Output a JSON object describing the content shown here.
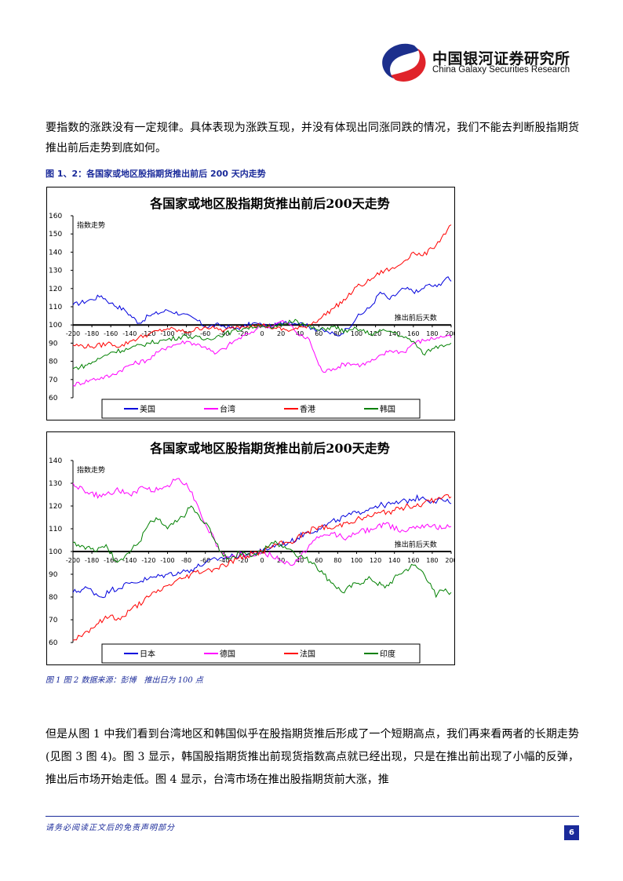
{
  "header": {
    "company_cn": "中国银河证券研究所",
    "company_en": "China Galaxy Securities Research",
    "logo_colors": {
      "blue": "#1c2f8c",
      "red": "#e0232a"
    }
  },
  "paragraphs": {
    "p1": "要指数的涨跌没有一定规律。具体表现为涨跌互现，并没有体现出同涨同跌的情况，我们不能去判断股指期货推出前后走势到底如何。",
    "p2": "但是从图 1 中我们看到台湾地区和韩国似乎在股指期货推后形成了一个短期高点，我们再来看两者的长期走势(见图 3 图 4)。图 3 显示，韩国股指期货推出前现货指数高点就已经出现，只是在推出前出现了小幅的反弹，推出后市场开始走低。图 4 显示，台湾市场在推出股指期货前大涨，推"
  },
  "figure": {
    "title": "图 1、2：各国家或地区股指期货推出前后 200 天内走势",
    "note": "图 1 图 2 数据来源：彭博　推出日为 100 点"
  },
  "footer": {
    "disclaimer": "请务必阅读正文后的免责声明部分",
    "page_number": "6"
  },
  "chart_data": [
    {
      "type": "line",
      "title": "各国家或地区股指期货推出前后200天走势",
      "ylabel": "指数走势",
      "annotation": "推出前后天数",
      "x_ticks": [
        -200,
        -180,
        -160,
        -140,
        -120,
        -100,
        -80,
        -60,
        -40,
        -20,
        0,
        20,
        40,
        60,
        80,
        100,
        120,
        140,
        160,
        180,
        200
      ],
      "y_ticks": [
        60,
        70,
        80,
        90,
        100,
        110,
        120,
        130,
        140,
        150,
        160
      ],
      "ylim": [
        60,
        160
      ],
      "xlim": [
        -200,
        200
      ],
      "baseline": 100,
      "legend_position": "bottom",
      "series": [
        {
          "name": "美国",
          "color": "#0000dd",
          "keys": [
            [
              -200,
              111
            ],
            [
              -180,
              114
            ],
            [
              -170,
              116
            ],
            [
              -160,
              112
            ],
            [
              -145,
              108
            ],
            [
              -130,
              101
            ],
            [
              -120,
              105
            ],
            [
              -100,
              108
            ],
            [
              -85,
              106
            ],
            [
              -70,
              103
            ],
            [
              -60,
              99
            ],
            [
              -45,
              100
            ],
            [
              -30,
              98
            ],
            [
              -20,
              99
            ],
            [
              -10,
              101
            ],
            [
              0,
              100
            ],
            [
              10,
              99
            ],
            [
              25,
              102
            ],
            [
              40,
              101
            ],
            [
              55,
              98
            ],
            [
              70,
              96
            ],
            [
              80,
              94
            ],
            [
              90,
              98
            ],
            [
              100,
              104
            ],
            [
              115,
              110
            ],
            [
              125,
              118
            ],
            [
              135,
              114
            ],
            [
              150,
              120
            ],
            [
              165,
              118
            ],
            [
              175,
              122
            ],
            [
              185,
              121
            ],
            [
              195,
              126
            ],
            [
              200,
              124
            ]
          ]
        },
        {
          "name": "台湾",
          "color": "#ff00ff",
          "keys": [
            [
              -200,
              67
            ],
            [
              -180,
              70
            ],
            [
              -160,
              72
            ],
            [
              -140,
              78
            ],
            [
              -120,
              81
            ],
            [
              -110,
              85
            ],
            [
              -100,
              88
            ],
            [
              -80,
              91
            ],
            [
              -60,
              88
            ],
            [
              -50,
              84
            ],
            [
              -40,
              87
            ],
            [
              -30,
              91
            ],
            [
              -15,
              95
            ],
            [
              -5,
              98
            ],
            [
              0,
              100
            ],
            [
              10,
              99
            ],
            [
              20,
              102
            ],
            [
              30,
              100
            ],
            [
              40,
              94
            ],
            [
              50,
              92
            ],
            [
              55,
              85
            ],
            [
              60,
              78
            ],
            [
              65,
              74
            ],
            [
              75,
              76
            ],
            [
              90,
              79
            ],
            [
              105,
              78
            ],
            [
              120,
              81
            ],
            [
              135,
              86
            ],
            [
              150,
              85
            ],
            [
              160,
              90
            ],
            [
              175,
              92
            ],
            [
              185,
              93
            ],
            [
              195,
              94
            ],
            [
              200,
              93
            ]
          ]
        },
        {
          "name": "香港",
          "color": "#ff0000",
          "keys": [
            [
              -200,
              89
            ],
            [
              -180,
              88
            ],
            [
              -160,
              90
            ],
            [
              -150,
              88
            ],
            [
              -140,
              91
            ],
            [
              -120,
              95
            ],
            [
              -100,
              98
            ],
            [
              -80,
              96
            ],
            [
              -60,
              99
            ],
            [
              -50,
              98
            ],
            [
              -40,
              97
            ],
            [
              -25,
              99
            ],
            [
              -10,
              100
            ],
            [
              0,
              100
            ],
            [
              15,
              98
            ],
            [
              30,
              97
            ],
            [
              45,
              99
            ],
            [
              60,
              103
            ],
            [
              75,
              109
            ],
            [
              90,
              115
            ],
            [
              100,
              121
            ],
            [
              110,
              123
            ],
            [
              120,
              127
            ],
            [
              130,
              130
            ],
            [
              140,
              131
            ],
            [
              150,
              135
            ],
            [
              160,
              140
            ],
            [
              170,
              138
            ],
            [
              180,
              142
            ],
            [
              190,
              148
            ],
            [
              200,
              155
            ]
          ]
        },
        {
          "name": "韩国",
          "color": "#008000",
          "keys": [
            [
              -200,
              76
            ],
            [
              -185,
              78
            ],
            [
              -170,
              82
            ],
            [
              -160,
              85
            ],
            [
              -140,
              87
            ],
            [
              -120,
              90
            ],
            [
              -100,
              92
            ],
            [
              -80,
              94
            ],
            [
              -60,
              92
            ],
            [
              -40,
              95
            ],
            [
              -20,
              98
            ],
            [
              0,
              100
            ],
            [
              10,
              98
            ],
            [
              25,
              101
            ],
            [
              35,
              103
            ],
            [
              45,
              100
            ],
            [
              60,
              97
            ],
            [
              75,
              99
            ],
            [
              90,
              96
            ],
            [
              100,
              98
            ],
            [
              115,
              95
            ],
            [
              130,
              97
            ],
            [
              140,
              96
            ],
            [
              150,
              93
            ],
            [
              160,
              91
            ],
            [
              170,
              84
            ],
            [
              180,
              87
            ],
            [
              190,
              89
            ],
            [
              200,
              90
            ]
          ]
        }
      ]
    },
    {
      "type": "line",
      "title": "各国家或地区股指期货推出前后200天走势",
      "ylabel": "指数走势",
      "annotation": "推出前后天数",
      "x_ticks": [
        -200,
        -180,
        -160,
        -140,
        -120,
        -100,
        -80,
        -60,
        -40,
        -20,
        0,
        20,
        40,
        60,
        80,
        100,
        120,
        140,
        160,
        180,
        200
      ],
      "y_ticks": [
        60,
        70,
        80,
        90,
        100,
        110,
        120,
        130,
        140
      ],
      "ylim": [
        60,
        140
      ],
      "xlim": [
        -200,
        200
      ],
      "baseline": 100,
      "legend_position": "bottom",
      "series": [
        {
          "name": "日本",
          "color": "#0000dd",
          "keys": [
            [
              -200,
              82
            ],
            [
              -185,
              84
            ],
            [
              -170,
              80
            ],
            [
              -160,
              83
            ],
            [
              -140,
              86
            ],
            [
              -120,
              88
            ],
            [
              -100,
              90
            ],
            [
              -85,
              91
            ],
            [
              -75,
              92
            ],
            [
              -60,
              95
            ],
            [
              -45,
              97
            ],
            [
              -30,
              98
            ],
            [
              -15,
              99
            ],
            [
              0,
              100
            ],
            [
              15,
              103
            ],
            [
              30,
              104
            ],
            [
              45,
              108
            ],
            [
              60,
              110
            ],
            [
              80,
              114
            ],
            [
              100,
              117
            ],
            [
              120,
              120
            ],
            [
              140,
              121
            ],
            [
              160,
              123
            ],
            [
              170,
              124
            ],
            [
              180,
              122
            ],
            [
              190,
              123
            ],
            [
              200,
              121
            ]
          ]
        },
        {
          "name": "德国",
          "color": "#ff00ff",
          "keys": [
            [
              -200,
              130
            ],
            [
              -185,
              126
            ],
            [
              -170,
              124
            ],
            [
              -155,
              127
            ],
            [
              -140,
              125
            ],
            [
              -125,
              128
            ],
            [
              -110,
              127
            ],
            [
              -100,
              129
            ],
            [
              -90,
              132
            ],
            [
              -80,
              130
            ],
            [
              -70,
              122
            ],
            [
              -60,
              112
            ],
            [
              -50,
              105
            ],
            [
              -45,
              100
            ],
            [
              -35,
              97
            ],
            [
              -20,
              99
            ],
            [
              -10,
              98
            ],
            [
              0,
              100
            ],
            [
              10,
              98
            ],
            [
              20,
              96
            ],
            [
              30,
              94
            ],
            [
              40,
              97
            ],
            [
              50,
              103
            ],
            [
              60,
              106
            ],
            [
              75,
              108
            ],
            [
              90,
              106
            ],
            [
              100,
              108
            ],
            [
              115,
              110
            ],
            [
              130,
              112
            ],
            [
              150,
              109
            ],
            [
              160,
              111
            ],
            [
              175,
              112
            ],
            [
              190,
              110
            ],
            [
              200,
              111
            ]
          ]
        },
        {
          "name": "法国",
          "color": "#ff0000",
          "keys": [
            [
              -200,
              61
            ],
            [
              -185,
              65
            ],
            [
              -175,
              68
            ],
            [
              -160,
              72
            ],
            [
              -150,
              70
            ],
            [
              -140,
              74
            ],
            [
              -120,
              80
            ],
            [
              -100,
              85
            ],
            [
              -85,
              88
            ],
            [
              -70,
              91
            ],
            [
              -55,
              92
            ],
            [
              -40,
              94
            ],
            [
              -25,
              97
            ],
            [
              -10,
              99
            ],
            [
              0,
              100
            ],
            [
              15,
              103
            ],
            [
              30,
              104
            ],
            [
              45,
              108
            ],
            [
              60,
              111
            ],
            [
              75,
              110
            ],
            [
              90,
              113
            ],
            [
              110,
              115
            ],
            [
              125,
              117
            ],
            [
              140,
              118
            ],
            [
              155,
              120
            ],
            [
              170,
              121
            ],
            [
              185,
              123
            ],
            [
              195,
              125
            ],
            [
              200,
              124
            ]
          ]
        },
        {
          "name": "印度",
          "color": "#008000",
          "keys": [
            [
              -200,
              104
            ],
            [
              -185,
              102
            ],
            [
              -175,
              100
            ],
            [
              -165,
              103
            ],
            [
              -155,
              96
            ],
            [
              -145,
              98
            ],
            [
              -130,
              104
            ],
            [
              -120,
              112
            ],
            [
              -110,
              114
            ],
            [
              -100,
              110
            ],
            [
              -90,
              113
            ],
            [
              -80,
              117
            ],
            [
              -75,
              120
            ],
            [
              -65,
              114
            ],
            [
              -55,
              110
            ],
            [
              -45,
              100
            ],
            [
              -35,
              97
            ],
            [
              -20,
              100
            ],
            [
              -10,
              98
            ],
            [
              0,
              100
            ],
            [
              10,
              104
            ],
            [
              20,
              103
            ],
            [
              30,
              101
            ],
            [
              40,
              98
            ],
            [
              55,
              95
            ],
            [
              65,
              90
            ],
            [
              75,
              86
            ],
            [
              85,
              82
            ],
            [
              100,
              86
            ],
            [
              115,
              88
            ],
            [
              130,
              84
            ],
            [
              145,
              90
            ],
            [
              160,
              94
            ],
            [
              170,
              91
            ],
            [
              178,
              86
            ],
            [
              184,
              80
            ],
            [
              190,
              83
            ],
            [
              200,
              82
            ]
          ]
        }
      ]
    }
  ]
}
